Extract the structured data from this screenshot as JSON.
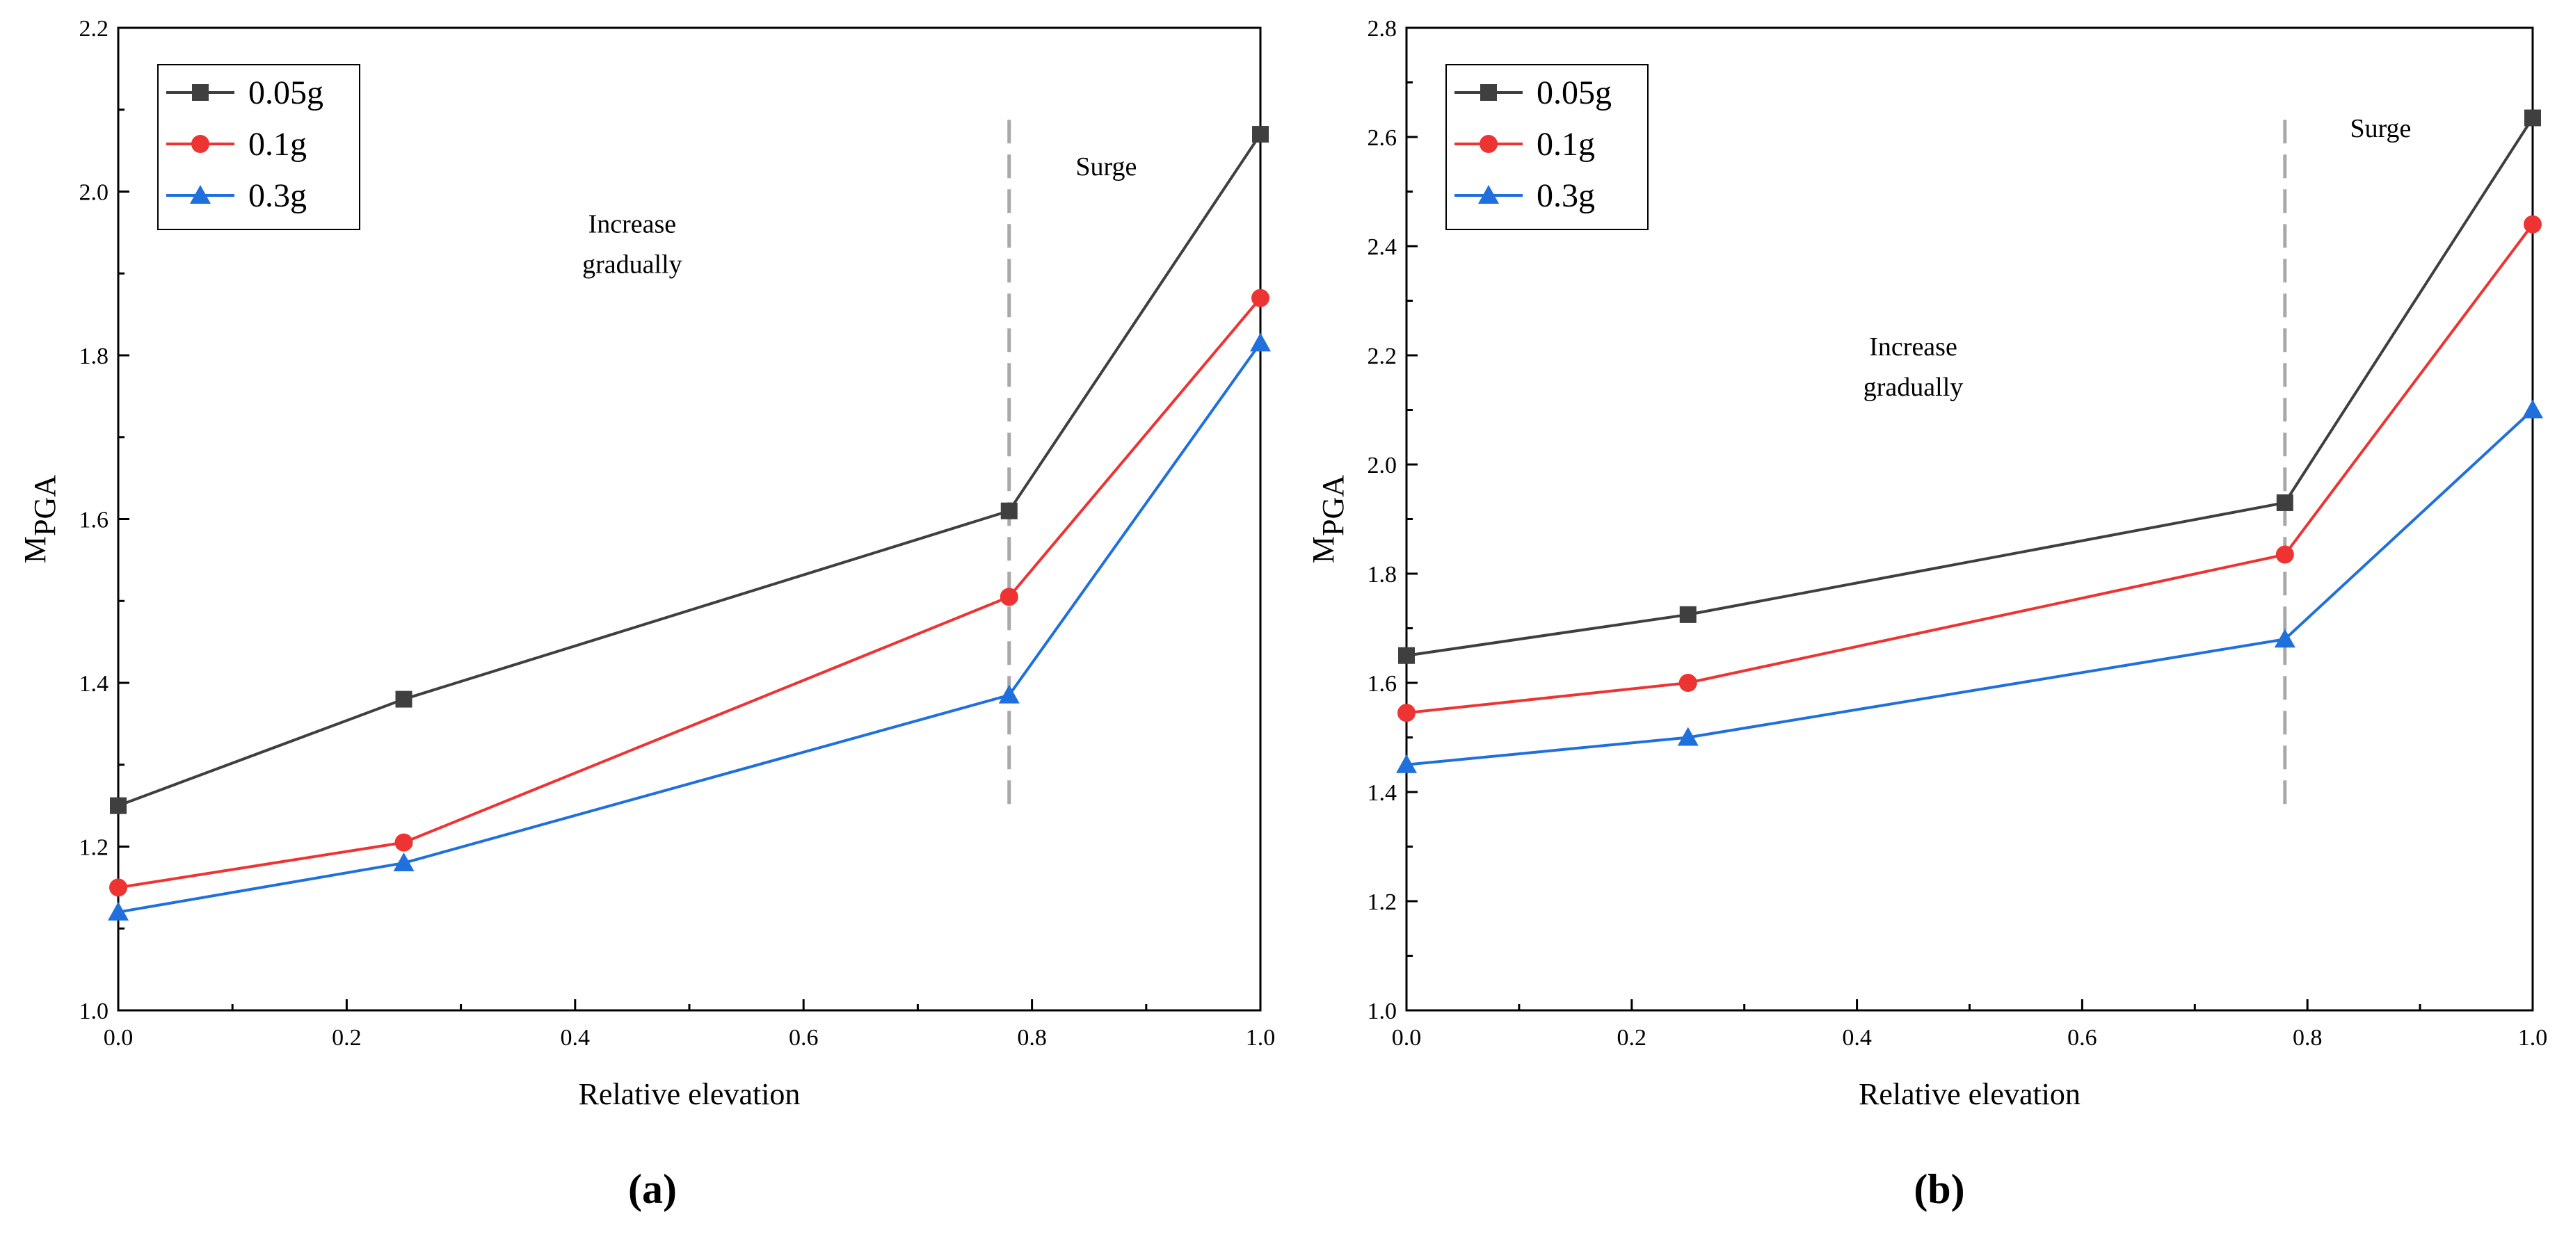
{
  "chart_data": [
    {
      "type": "line",
      "panel_label": "(a)",
      "xlabel": "Relative elevation",
      "ylabel_main": "M",
      "ylabel_sub": "PGA",
      "xlim": [
        0.0,
        1.0
      ],
      "ylim": [
        1.0,
        2.2
      ],
      "x_ticks": [
        "0.0",
        "0.2",
        "0.4",
        "0.6",
        "0.8",
        "1.0"
      ],
      "y_ticks": [
        "1.0",
        "1.2",
        "1.4",
        "1.6",
        "1.8",
        "2.0",
        "2.2"
      ],
      "x": [
        0.0,
        0.25,
        0.78,
        1.0
      ],
      "series": [
        {
          "name": "0.05g",
          "marker": "square",
          "color": "#3f3f3f",
          "values": [
            1.25,
            1.38,
            1.61,
            2.07
          ]
        },
        {
          "name": "0.1g",
          "marker": "circle",
          "color": "#ee3333",
          "values": [
            1.15,
            1.205,
            1.505,
            1.87
          ]
        },
        {
          "name": "0.3g",
          "marker": "triangle",
          "color": "#1f6fdc",
          "values": [
            1.12,
            1.18,
            1.385,
            1.815
          ]
        }
      ],
      "divider_x": 0.78,
      "annotations": [
        {
          "lines": [
            "Increase",
            "gradually"
          ],
          "x": 0.45,
          "y": 1.95
        },
        {
          "lines": [
            "Surge"
          ],
          "x": 0.865,
          "y": 2.02
        }
      ],
      "legend_position": "top-left"
    },
    {
      "type": "line",
      "panel_label": "(b)",
      "xlabel": "Relative elevation",
      "ylabel_main": "M",
      "ylabel_sub": "PGA",
      "xlim": [
        0.0,
        1.0
      ],
      "ylim": [
        1.0,
        2.8
      ],
      "x_ticks": [
        "0.0",
        "0.2",
        "0.4",
        "0.6",
        "0.8",
        "1.0"
      ],
      "y_ticks": [
        "1.0",
        "1.2",
        "1.4",
        "1.6",
        "1.8",
        "2.0",
        "2.2",
        "2.4",
        "2.6",
        "2.8"
      ],
      "x": [
        0.0,
        0.25,
        0.78,
        1.0
      ],
      "series": [
        {
          "name": "0.05g",
          "marker": "square",
          "color": "#3f3f3f",
          "values": [
            1.65,
            1.725,
            1.93,
            2.635
          ]
        },
        {
          "name": "0.1g",
          "marker": "circle",
          "color": "#ee3333",
          "values": [
            1.545,
            1.6,
            1.835,
            2.44
          ]
        },
        {
          "name": "0.3g",
          "marker": "triangle",
          "color": "#1f6fdc",
          "values": [
            1.45,
            1.5,
            1.68,
            2.1
          ]
        }
      ],
      "divider_x": 0.78,
      "annotations": [
        {
          "lines": [
            "Increase",
            "gradually"
          ],
          "x": 0.45,
          "y": 2.2
        },
        {
          "lines": [
            "Surge"
          ],
          "x": 0.865,
          "y": 2.6
        }
      ],
      "legend_position": "top-left"
    }
  ]
}
